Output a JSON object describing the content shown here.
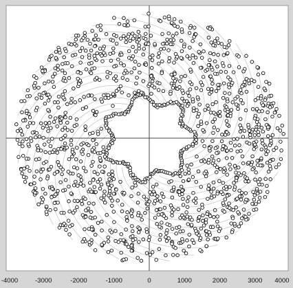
{
  "chart_data": {
    "type": "scatter",
    "title": "",
    "xlabel": "",
    "ylabel": "",
    "xlim": [
      -4000,
      4000
    ],
    "ylim": [
      -4000,
      4000
    ],
    "grid": false,
    "legend": "none",
    "x_tick_labels": [
      "-4000",
      "-3000",
      "-2000",
      "-1000",
      "0",
      "1000",
      "2000",
      "3000",
      "4000"
    ],
    "x_ticks": [
      -4000,
      -3000,
      -2000,
      -1000,
      0,
      1000,
      2000,
      3000,
      4000
    ],
    "marker": "open-circle",
    "colors": {
      "frame_background": "#d6d6d6",
      "plot_background": "#ffffff",
      "marker_stroke": "#111111",
      "marker_fill": "#ffffff",
      "path_lines": "#c8c8c8",
      "axis_lines": "#444444"
    },
    "series": [
      {
        "description_ring": "inner boundary ring of points forming a scalloped star around a central hole",
        "inner_radius_mean": 1180,
        "inner_radius_wave_amplitude": 170,
        "inner_radius_lobes": 7,
        "inner_ring_point_count": 170,
        "outer_radius": 3800,
        "field_point_count": 1400,
        "spiral_arms": 11,
        "random_seed": 12345
      }
    ]
  }
}
